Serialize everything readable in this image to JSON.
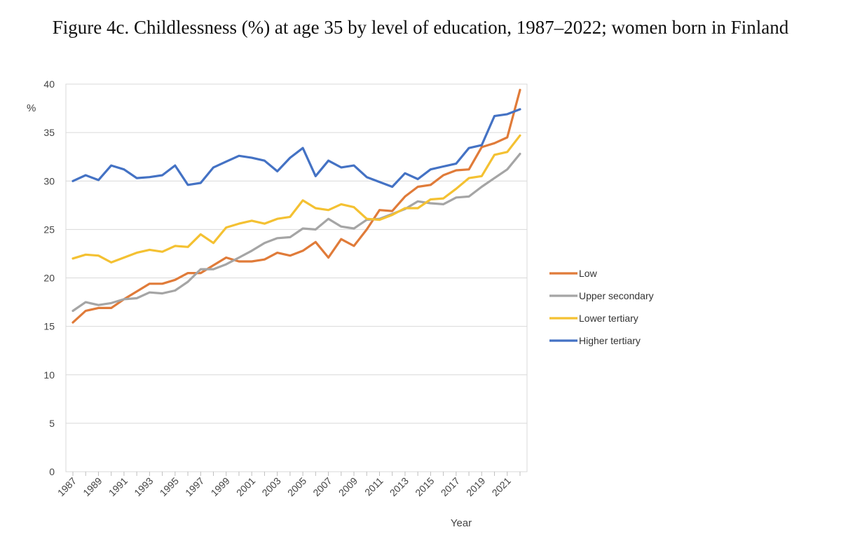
{
  "figure": {
    "title": "Figure 4c. Childlessness (%) at age 35 by level of education, 1987–2022; women born in Finland"
  },
  "chart_data": {
    "type": "line",
    "title": "Figure 4c. Childlessness (%) at age 35 by level of education, 1987–2022; women born in Finland",
    "xlabel": "Year",
    "ylabel": "%",
    "ylim": [
      0,
      40
    ],
    "yticks": [
      0,
      5,
      10,
      15,
      20,
      25,
      30,
      35,
      40
    ],
    "xlim": [
      1987,
      2022
    ],
    "xticks": [
      "1987",
      "1989",
      "1991",
      "1993",
      "1995",
      "1997",
      "1999",
      "2001",
      "2003",
      "2005",
      "2007",
      "2009",
      "2011",
      "2013",
      "2015",
      "2017",
      "2019",
      "2021"
    ],
    "grid": "horizontal",
    "legend_position": "right",
    "x": [
      1987,
      1988,
      1989,
      1990,
      1991,
      1992,
      1993,
      1994,
      1995,
      1996,
      1997,
      1998,
      1999,
      2000,
      2001,
      2002,
      2003,
      2004,
      2005,
      2006,
      2007,
      2008,
      2009,
      2010,
      2011,
      2012,
      2013,
      2014,
      2015,
      2016,
      2017,
      2018,
      2019,
      2020,
      2021,
      2022
    ],
    "series": [
      {
        "name": "Low",
        "color": "#E07B39",
        "values": [
          15.4,
          16.6,
          16.9,
          16.9,
          17.8,
          18.6,
          19.4,
          19.4,
          19.8,
          20.5,
          20.5,
          21.3,
          22.1,
          21.7,
          21.7,
          21.9,
          22.6,
          22.3,
          22.8,
          23.7,
          22.1,
          24.0,
          23.3,
          25.0,
          27.0,
          26.9,
          28.4,
          29.4,
          29.6,
          30.6,
          31.1,
          31.2,
          33.5,
          33.9,
          34.5,
          39.4
        ]
      },
      {
        "name": "Upper secondary",
        "color": "#A5A5A5",
        "values": [
          16.6,
          17.5,
          17.2,
          17.4,
          17.8,
          17.9,
          18.5,
          18.4,
          18.7,
          19.6,
          20.9,
          20.9,
          21.4,
          22.1,
          22.8,
          23.6,
          24.1,
          24.2,
          25.1,
          25.0,
          26.1,
          25.3,
          25.1,
          26.0,
          26.1,
          26.6,
          27.1,
          27.9,
          27.7,
          27.6,
          28.3,
          28.4,
          29.4,
          30.3,
          31.2,
          32.8
        ]
      },
      {
        "name": "Lower tertiary",
        "color": "#F4C132",
        "values": [
          22.0,
          22.4,
          22.3,
          21.6,
          22.1,
          22.6,
          22.9,
          22.7,
          23.3,
          23.2,
          24.5,
          23.6,
          25.2,
          25.6,
          25.9,
          25.6,
          26.1,
          26.3,
          28.0,
          27.2,
          27.0,
          27.6,
          27.3,
          26.1,
          26.0,
          26.5,
          27.2,
          27.2,
          28.1,
          28.2,
          29.2,
          30.3,
          30.5,
          32.7,
          33.0,
          34.7
        ]
      },
      {
        "name": "Higher tertiary",
        "color": "#4472C4",
        "values": [
          30.0,
          30.6,
          30.1,
          31.6,
          31.2,
          30.3,
          30.4,
          30.6,
          31.6,
          29.6,
          29.8,
          31.4,
          32.0,
          32.6,
          32.4,
          32.1,
          31.0,
          32.4,
          33.4,
          30.5,
          32.1,
          31.4,
          31.6,
          30.4,
          29.9,
          29.4,
          30.8,
          30.2,
          31.2,
          31.5,
          31.8,
          33.4,
          33.7,
          36.7,
          36.9,
          37.4
        ]
      }
    ]
  }
}
